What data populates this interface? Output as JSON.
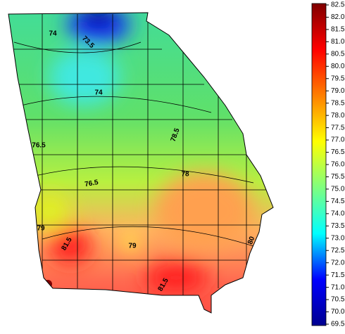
{
  "map": {
    "colorbar": {
      "lim": [
        69.5,
        82.5
      ],
      "colors": [
        "#00008f",
        "#0000ff",
        "#00ffff",
        "#7fff7f",
        "#ffff00",
        "#ff7f00",
        "#ff0000",
        "#7f0000"
      ],
      "ticks": [
        69.5,
        {
          "value": 70,
          "label": "70.0"
        },
        70.5,
        {
          "value": 71,
          "label": "71.0"
        },
        71.5,
        {
          "value": 72,
          "label": "72.0"
        },
        72.5,
        {
          "value": 73,
          "label": "73.0"
        },
        73.5,
        {
          "value": 74,
          "label": "74.0"
        },
        74.5,
        {
          "value": 75,
          "label": "75.0"
        },
        75.5,
        {
          "value": 76,
          "label": "76.0"
        },
        76.5,
        {
          "value": 77,
          "label": "77.0"
        },
        77.5,
        {
          "value": 78,
          "label": "78.0"
        },
        78.5,
        {
          "value": 79,
          "label": "79.0"
        },
        79.5,
        {
          "value": 80,
          "label": "80.0"
        },
        80.5,
        {
          "value": 81,
          "label": "81.0"
        },
        81.5,
        {
          "value": 82,
          "label": "82.0"
        },
        82.5
      ]
    },
    "contour_labels": [
      74,
      73.5,
      74,
      78.5,
      76.5,
      78,
      76.5,
      79,
      81.5,
      79,
      80,
      81.5
    ]
  }
}
